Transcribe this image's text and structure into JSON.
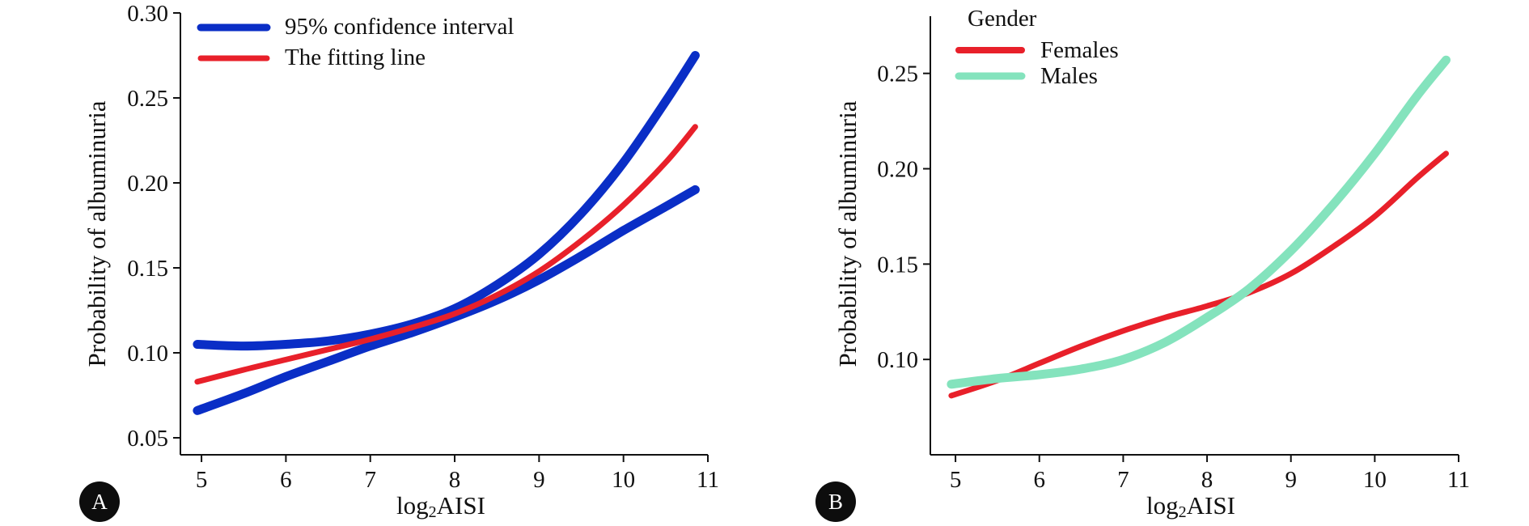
{
  "chart_data": [
    {
      "panel": "A",
      "type": "line",
      "xlabel": "log2AISI",
      "ylabel": "Probability of albuminuria",
      "xlim": [
        4.75,
        11
      ],
      "ylim": [
        0.04,
        0.3
      ],
      "xticks": [
        5,
        6,
        7,
        8,
        9,
        10,
        11
      ],
      "yticks": [
        0.05,
        0.1,
        0.15,
        0.2,
        0.25,
        0.3
      ],
      "ytick_labels": [
        "0.05",
        "0.10",
        "0.15",
        "0.20",
        "0.25",
        "0.30"
      ],
      "grid": false,
      "legend_position": "top-left",
      "legend": [
        {
          "label": "95% confidence interval",
          "color": "#0a2ec6"
        },
        {
          "label": "The fitting line",
          "color": "#e8202a"
        }
      ],
      "series": [
        {
          "name": "95% confidence interval",
          "role": "upper",
          "color": "#0a2ec6",
          "x": [
            4.95,
            5.5,
            6,
            6.5,
            7,
            7.5,
            8,
            8.5,
            9,
            9.5,
            10,
            10.5,
            10.85
          ],
          "y": [
            0.105,
            0.104,
            0.105,
            0.107,
            0.111,
            0.117,
            0.126,
            0.14,
            0.158,
            0.182,
            0.212,
            0.248,
            0.275
          ]
        },
        {
          "name": "95% confidence interval",
          "role": "lower",
          "color": "#0a2ec6",
          "x": [
            4.95,
            5.5,
            6,
            6.5,
            7,
            7.5,
            8,
            8.5,
            9,
            9.5,
            10,
            10.5,
            10.85
          ],
          "y": [
            0.066,
            0.076,
            0.086,
            0.095,
            0.104,
            0.112,
            0.121,
            0.131,
            0.143,
            0.157,
            0.172,
            0.186,
            0.196
          ]
        },
        {
          "name": "The fitting line",
          "role": "fit",
          "color": "#e8202a",
          "x": [
            4.95,
            5.5,
            6,
            6.5,
            7,
            7.5,
            8,
            8.5,
            9,
            9.5,
            10,
            10.5,
            10.85
          ],
          "y": [
            0.083,
            0.09,
            0.096,
            0.102,
            0.108,
            0.115,
            0.123,
            0.134,
            0.148,
            0.166,
            0.187,
            0.212,
            0.233
          ]
        }
      ]
    },
    {
      "panel": "B",
      "type": "line",
      "xlabel": "log2AISI",
      "ylabel": "Probability of albuminuria",
      "xlim": [
        4.7,
        11
      ],
      "ylim": [
        0.05,
        0.28
      ],
      "xticks": [
        5,
        6,
        7,
        8,
        9,
        10,
        11
      ],
      "yticks": [
        0.1,
        0.15,
        0.2,
        0.25
      ],
      "ytick_labels": [
        "0.10",
        "0.15",
        "0.20",
        "0.25"
      ],
      "grid": false,
      "legend_position": "top-left",
      "legend_title": "Gender",
      "legend": [
        {
          "label": "Females",
          "color": "#e8202a"
        },
        {
          "label": "Males",
          "color": "#84e3bd"
        }
      ],
      "series": [
        {
          "name": "Females",
          "color": "#e8202a",
          "x": [
            4.95,
            5.5,
            6,
            6.5,
            7,
            7.5,
            8,
            8.5,
            9,
            9.5,
            10,
            10.5,
            10.85
          ],
          "y": [
            0.081,
            0.089,
            0.098,
            0.107,
            0.115,
            0.122,
            0.128,
            0.135,
            0.145,
            0.159,
            0.175,
            0.195,
            0.208
          ]
        },
        {
          "name": "Males",
          "color": "#84e3bd",
          "x": [
            4.95,
            5.5,
            6,
            6.5,
            7,
            7.5,
            8,
            8.5,
            9,
            9.5,
            10,
            10.5,
            10.85
          ],
          "y": [
            0.087,
            0.09,
            0.092,
            0.095,
            0.1,
            0.109,
            0.122,
            0.137,
            0.157,
            0.181,
            0.208,
            0.238,
            0.257
          ]
        }
      ]
    }
  ]
}
